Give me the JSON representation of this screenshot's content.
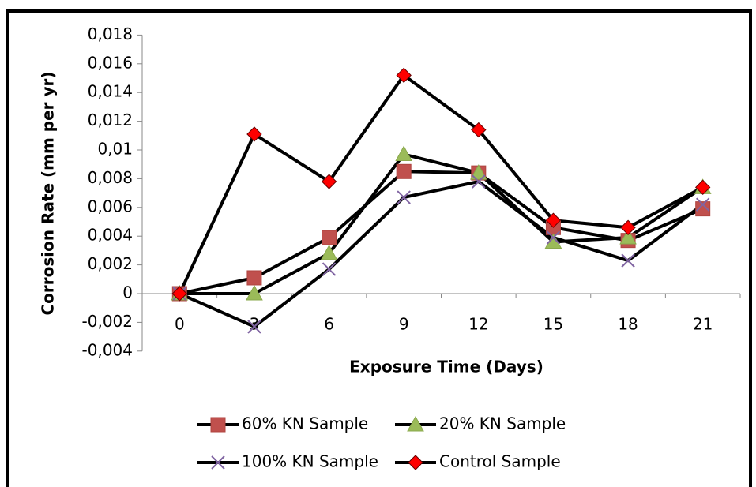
{
  "chart_data": {
    "type": "line",
    "x_label": "Exposure Time (Days)",
    "y_label": "Corrosion Rate (mm per yr)",
    "categories": [
      "0",
      "3",
      "6",
      "9",
      "12",
      "15",
      "18",
      "21"
    ],
    "ylim": [
      -0.004,
      0.018
    ],
    "yticks": [
      {
        "value": -0.004,
        "label": "-0,004"
      },
      {
        "value": -0.002,
        "label": "-0,002"
      },
      0,
      {
        "value": 0.002,
        "label": "0,002"
      },
      {
        "value": 0.004,
        "label": "0,004"
      },
      {
        "value": 0.006,
        "label": "0,006"
      },
      {
        "value": 0.008,
        "label": "0,008"
      },
      {
        "value": 0.01,
        "label": "0,01"
      },
      {
        "value": 0.012,
        "label": "0,012"
      },
      {
        "value": 0.014,
        "label": "0,014"
      },
      {
        "value": 0.016,
        "label": "0,016"
      },
      {
        "value": 0.018,
        "label": "0,018"
      }
    ],
    "line_color": "#000000",
    "series": [
      {
        "name": "60% KN Sample",
        "color": "#c0504d",
        "marker": "square",
        "values": [
          0,
          0.0011,
          0.0039,
          0.0085,
          0.0084,
          0.0046,
          0.0037,
          0.0059
        ]
      },
      {
        "name": "20% KN Sample",
        "color": "#9bbb59",
        "marker": "triangle",
        "values": [
          0,
          0,
          0.0028,
          0.0097,
          0.0084,
          0.0036,
          0.0039,
          0.0074
        ]
      },
      {
        "name": "100% KN Sample",
        "color": "#8064a2",
        "marker": "x",
        "values": [
          0,
          -0.0023,
          0.0017,
          0.0067,
          0.0078,
          0.0039,
          0.0023,
          0.0062
        ]
      },
      {
        "name": "Control Sample",
        "color": "#ff0000",
        "marker": "diamond",
        "values": [
          0,
          0.0111,
          0.0078,
          0.0152,
          0.0114,
          0.0051,
          0.0046,
          0.0074
        ]
      }
    ]
  }
}
